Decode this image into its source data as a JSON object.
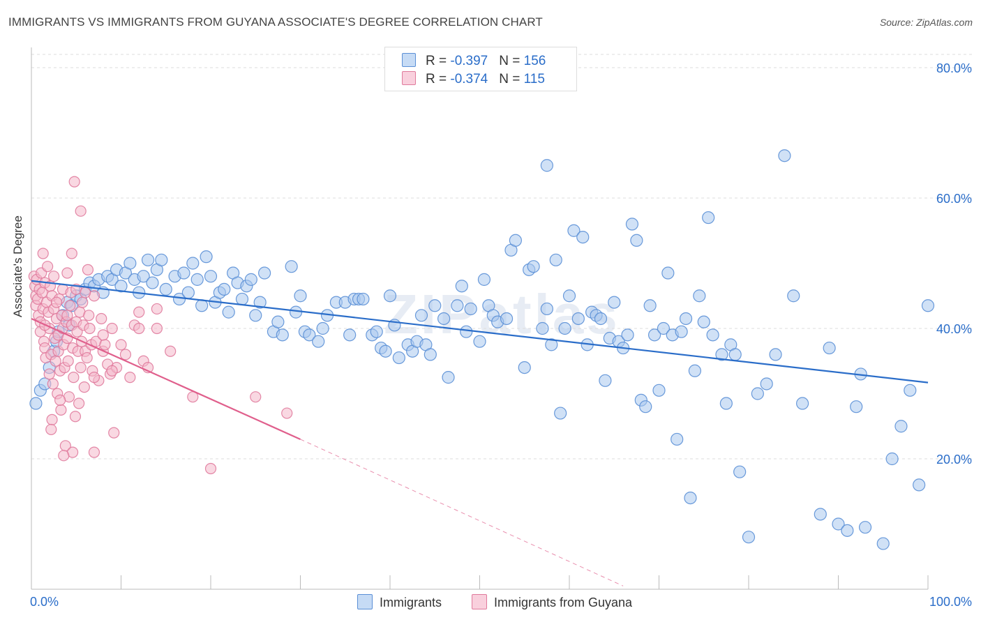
{
  "title": "IMMIGRANTS VS IMMIGRANTS FROM GUYANA ASSOCIATE'S DEGREE CORRELATION CHART",
  "source": "Source: ZipAtlas.com",
  "watermark": "ZIPatlas",
  "legend": {
    "rows": [
      {
        "r_label": "R = ",
        "r_value": "-0.397",
        "n_label": "N = ",
        "n_value": "156"
      },
      {
        "r_label": "R = ",
        "r_value": "-0.374",
        "n_label": "N = ",
        "n_value": "115"
      }
    ]
  },
  "bottom_legend": [
    "Immigrants",
    "Immigrants from Guyana"
  ],
  "colors": {
    "blue_fill": "#aac8ee",
    "blue_stroke": "#5a8fd6",
    "blue_line": "#2a6dc9",
    "pink_fill": "#f4b8cb",
    "pink_stroke": "#e07a9c",
    "pink_line": "#e05f8c",
    "axis_label": "#2a6dc9",
    "grid": "#dddddd"
  },
  "chart_data": {
    "type": "scatter",
    "title": "IMMIGRANTS VS IMMIGRANTS FROM GUYANA ASSOCIATE'S DEGREE CORRELATION CHART",
    "xlabel": "",
    "ylabel": "Associate's Degree",
    "xlim": [
      0,
      100
    ],
    "ylim": [
      0,
      80
    ],
    "x_tick_labels": [
      "0.0%",
      "100.0%"
    ],
    "y_ticks": [
      20,
      40,
      60,
      80
    ],
    "y_tick_labels": [
      "20.0%",
      "40.0%",
      "60.0%",
      "80.0%"
    ],
    "grid": true,
    "series": [
      {
        "name": "Immigrants",
        "r": -0.397,
        "n": 156,
        "trend": {
          "x": [
            0,
            100
          ],
          "y": [
            47.3,
            31.7
          ]
        },
        "points": [
          [
            0.5,
            28.5
          ],
          [
            1.0,
            30.5
          ],
          [
            1.5,
            31.5
          ],
          [
            2.0,
            34.0
          ],
          [
            2.5,
            36.5
          ],
          [
            2.8,
            38.0
          ],
          [
            3.0,
            39.5
          ],
          [
            3.5,
            42.0
          ],
          [
            4.0,
            44.0
          ],
          [
            4.2,
            40.5
          ],
          [
            4.5,
            43.5
          ],
          [
            5.0,
            45.0
          ],
          [
            5.5,
            44.5
          ],
          [
            6.0,
            46.0
          ],
          [
            6.5,
            47.0
          ],
          [
            7.0,
            46.5
          ],
          [
            7.5,
            47.5
          ],
          [
            8.0,
            45.5
          ],
          [
            8.5,
            48.0
          ],
          [
            9.0,
            47.5
          ],
          [
            9.5,
            49.0
          ],
          [
            10.0,
            46.5
          ],
          [
            10.5,
            48.5
          ],
          [
            11.0,
            50.0
          ],
          [
            11.5,
            47.5
          ],
          [
            12.0,
            45.5
          ],
          [
            12.5,
            48.0
          ],
          [
            13.0,
            50.5
          ],
          [
            13.5,
            47.0
          ],
          [
            14.0,
            49.0
          ],
          [
            14.5,
            50.5
          ],
          [
            15.0,
            46.0
          ],
          [
            16.0,
            48.0
          ],
          [
            16.5,
            44.5
          ],
          [
            17.0,
            48.5
          ],
          [
            17.5,
            45.5
          ],
          [
            18.0,
            50.0
          ],
          [
            18.5,
            47.5
          ],
          [
            19.0,
            43.5
          ],
          [
            19.5,
            51.0
          ],
          [
            20.0,
            48.0
          ],
          [
            20.5,
            44.0
          ],
          [
            21.0,
            45.5
          ],
          [
            21.5,
            46.0
          ],
          [
            22.0,
            42.5
          ],
          [
            22.5,
            48.5
          ],
          [
            23.0,
            47.0
          ],
          [
            23.5,
            44.5
          ],
          [
            24.0,
            46.5
          ],
          [
            24.5,
            47.5
          ],
          [
            25.0,
            42.0
          ],
          [
            25.5,
            44.0
          ],
          [
            26.0,
            48.5
          ],
          [
            27.0,
            39.5
          ],
          [
            27.5,
            41.0
          ],
          [
            28.0,
            39.0
          ],
          [
            29.0,
            49.5
          ],
          [
            29.5,
            42.5
          ],
          [
            30.0,
            45.0
          ],
          [
            30.5,
            39.5
          ],
          [
            31.0,
            39.0
          ],
          [
            32.0,
            38.0
          ],
          [
            32.5,
            40.0
          ],
          [
            33.0,
            42.0
          ],
          [
            34.0,
            44.0
          ],
          [
            35.0,
            44.0
          ],
          [
            35.5,
            39.0
          ],
          [
            36.0,
            44.5
          ],
          [
            36.5,
            44.5
          ],
          [
            37.0,
            44.5
          ],
          [
            38.0,
            39.0
          ],
          [
            38.5,
            39.5
          ],
          [
            39.0,
            37.0
          ],
          [
            39.5,
            36.5
          ],
          [
            40.0,
            45.0
          ],
          [
            40.5,
            40.5
          ],
          [
            41.0,
            35.5
          ],
          [
            42.0,
            37.5
          ],
          [
            42.5,
            36.5
          ],
          [
            43.0,
            38.0
          ],
          [
            43.5,
            42.0
          ],
          [
            44.0,
            37.5
          ],
          [
            44.5,
            36.0
          ],
          [
            45.0,
            43.5
          ],
          [
            46.0,
            41.5
          ],
          [
            46.5,
            32.5
          ],
          [
            47.5,
            43.5
          ],
          [
            48.0,
            46.5
          ],
          [
            48.5,
            39.5
          ],
          [
            49.0,
            43.0
          ],
          [
            50.0,
            38.0
          ],
          [
            50.5,
            47.5
          ],
          [
            51.0,
            43.5
          ],
          [
            51.5,
            42.0
          ],
          [
            52.0,
            41.0
          ],
          [
            53.0,
            41.5
          ],
          [
            53.5,
            52.0
          ],
          [
            54.0,
            53.5
          ],
          [
            55.0,
            34.0
          ],
          [
            55.5,
            49.0
          ],
          [
            56.0,
            49.5
          ],
          [
            57.0,
            40.0
          ],
          [
            57.5,
            43.0
          ],
          [
            58.0,
            37.5
          ],
          [
            58.5,
            50.5
          ],
          [
            59.0,
            27.0
          ],
          [
            59.5,
            40.0
          ],
          [
            60.0,
            45.0
          ],
          [
            60.5,
            55.0
          ],
          [
            61.0,
            41.5
          ],
          [
            61.5,
            54.0
          ],
          [
            62.0,
            37.5
          ],
          [
            62.5,
            42.5
          ],
          [
            63.0,
            42.0
          ],
          [
            63.5,
            41.5
          ],
          [
            64.0,
            32.0
          ],
          [
            64.5,
            38.5
          ],
          [
            65.0,
            44.0
          ],
          [
            65.5,
            38.0
          ],
          [
            66.0,
            37.0
          ],
          [
            66.5,
            39.0
          ],
          [
            67.0,
            56.0
          ],
          [
            67.5,
            53.5
          ],
          [
            68.0,
            29.0
          ],
          [
            68.5,
            28.0
          ],
          [
            69.0,
            43.5
          ],
          [
            69.5,
            39.0
          ],
          [
            70.0,
            30.5
          ],
          [
            70.5,
            40.0
          ],
          [
            71.0,
            48.5
          ],
          [
            71.5,
            39.0
          ],
          [
            72.0,
            23.0
          ],
          [
            72.5,
            39.5
          ],
          [
            73.0,
            41.5
          ],
          [
            73.5,
            14.0
          ],
          [
            74.0,
            33.5
          ],
          [
            74.5,
            45.0
          ],
          [
            75.0,
            41.0
          ],
          [
            75.5,
            57.0
          ],
          [
            76.0,
            39.0
          ],
          [
            77.0,
            36.0
          ],
          [
            77.5,
            28.5
          ],
          [
            78.0,
            37.5
          ],
          [
            78.5,
            36.0
          ],
          [
            79.0,
            18.0
          ],
          [
            80.0,
            8.0
          ],
          [
            81.0,
            30.0
          ],
          [
            82.0,
            31.5
          ],
          [
            83.0,
            36.0
          ],
          [
            84.0,
            66.5
          ],
          [
            85.0,
            45.0
          ],
          [
            86.0,
            28.5
          ],
          [
            88.0,
            11.5
          ],
          [
            89.0,
            37.0
          ],
          [
            90.0,
            10.0
          ],
          [
            91.0,
            9.0
          ],
          [
            92.0,
            28.0
          ],
          [
            93.0,
            9.5
          ],
          [
            95.0,
            7.0
          ],
          [
            96.0,
            20.0
          ],
          [
            97.0,
            25.0
          ],
          [
            98.0,
            30.5
          ],
          [
            99.0,
            16.0
          ],
          [
            100.0,
            43.5
          ],
          [
            57.5,
            65.0
          ],
          [
            92.5,
            33.0
          ]
        ]
      },
      {
        "name": "Immigrants from Guyana",
        "r": -0.374,
        "n": 115,
        "trend": {
          "x": [
            0,
            30
          ],
          "y": [
            41.5,
            23.0
          ],
          "dashed_to": {
            "x": [
              30,
              66
            ],
            "y": [
              23.0,
              0.5
            ]
          }
        },
        "points": [
          [
            0.3,
            48.0
          ],
          [
            0.4,
            46.5
          ],
          [
            0.5,
            45.0
          ],
          [
            0.5,
            43.5
          ],
          [
            0.6,
            47.5
          ],
          [
            0.7,
            44.5
          ],
          [
            0.8,
            42.0
          ],
          [
            0.9,
            46.0
          ],
          [
            1.0,
            41.0
          ],
          [
            1.0,
            39.5
          ],
          [
            1.1,
            48.5
          ],
          [
            1.2,
            45.5
          ],
          [
            1.3,
            43.0
          ],
          [
            1.3,
            51.5
          ],
          [
            1.4,
            38.0
          ],
          [
            1.5,
            37.0
          ],
          [
            1.5,
            47.0
          ],
          [
            1.6,
            35.5
          ],
          [
            1.7,
            44.0
          ],
          [
            1.8,
            49.5
          ],
          [
            1.9,
            42.5
          ],
          [
            2.0,
            40.0
          ],
          [
            2.0,
            33.0
          ],
          [
            2.1,
            46.5
          ],
          [
            2.2,
            36.0
          ],
          [
            2.3,
            45.0
          ],
          [
            2.4,
            31.5
          ],
          [
            2.5,
            43.0
          ],
          [
            2.5,
            48.0
          ],
          [
            2.6,
            38.5
          ],
          [
            2.7,
            35.0
          ],
          [
            2.8,
            41.5
          ],
          [
            2.9,
            30.0
          ],
          [
            3.0,
            39.0
          ],
          [
            3.0,
            36.5
          ],
          [
            3.1,
            44.5
          ],
          [
            3.2,
            33.5
          ],
          [
            3.3,
            27.5
          ],
          [
            3.4,
            42.0
          ],
          [
            3.5,
            46.0
          ],
          [
            3.5,
            40.0
          ],
          [
            3.6,
            37.5
          ],
          [
            3.7,
            34.0
          ],
          [
            3.8,
            22.0
          ],
          [
            3.9,
            41.0
          ],
          [
            4.0,
            38.5
          ],
          [
            4.0,
            48.5
          ],
          [
            4.1,
            35.0
          ],
          [
            4.2,
            29.5
          ],
          [
            4.3,
            43.5
          ],
          [
            4.4,
            45.5
          ],
          [
            4.5,
            51.5
          ],
          [
            4.5,
            40.5
          ],
          [
            4.6,
            37.0
          ],
          [
            4.7,
            32.5
          ],
          [
            4.8,
            62.5
          ],
          [
            4.9,
            26.5
          ],
          [
            5.0,
            41.0
          ],
          [
            5.0,
            46.0
          ],
          [
            5.1,
            39.5
          ],
          [
            5.2,
            36.5
          ],
          [
            5.3,
            28.5
          ],
          [
            5.4,
            42.5
          ],
          [
            5.5,
            34.0
          ],
          [
            5.6,
            38.0
          ],
          [
            5.7,
            44.0
          ],
          [
            5.8,
            40.5
          ],
          [
            5.9,
            31.0
          ],
          [
            6.0,
            36.5
          ],
          [
            6.2,
            35.5
          ],
          [
            6.3,
            49.0
          ],
          [
            6.4,
            42.0
          ],
          [
            6.5,
            40.0
          ],
          [
            6.7,
            37.5
          ],
          [
            6.8,
            33.5
          ],
          [
            7.0,
            45.0
          ],
          [
            7.2,
            38.0
          ],
          [
            7.5,
            32.0
          ],
          [
            7.8,
            41.5
          ],
          [
            8.0,
            36.5
          ],
          [
            8.2,
            37.5
          ],
          [
            8.5,
            34.5
          ],
          [
            8.8,
            33.0
          ],
          [
            9.0,
            40.0
          ],
          [
            9.2,
            24.0
          ],
          [
            9.5,
            34.0
          ],
          [
            10.0,
            37.5
          ],
          [
            10.5,
            36.0
          ],
          [
            11.0,
            32.5
          ],
          [
            11.5,
            40.5
          ],
          [
            12.0,
            42.5
          ],
          [
            12.5,
            35.0
          ],
          [
            13.0,
            34.0
          ],
          [
            14.0,
            40.0
          ],
          [
            5.5,
            58.0
          ],
          [
            7.0,
            32.5
          ],
          [
            9.0,
            33.5
          ],
          [
            4.0,
            42.0
          ],
          [
            3.2,
            29.0
          ],
          [
            2.3,
            26.0
          ],
          [
            4.6,
            21.0
          ],
          [
            7.0,
            21.0
          ],
          [
            12.0,
            40.0
          ],
          [
            14.0,
            43.0
          ],
          [
            15.5,
            36.5
          ],
          [
            18.0,
            29.5
          ],
          [
            20.0,
            18.5
          ],
          [
            25.0,
            29.5
          ],
          [
            28.5,
            27.0
          ],
          [
            1.5,
            40.5
          ],
          [
            2.8,
            44.0
          ],
          [
            6.0,
            45.5
          ],
          [
            8.0,
            39.0
          ],
          [
            3.6,
            20.5
          ],
          [
            2.2,
            24.5
          ]
        ]
      }
    ]
  }
}
